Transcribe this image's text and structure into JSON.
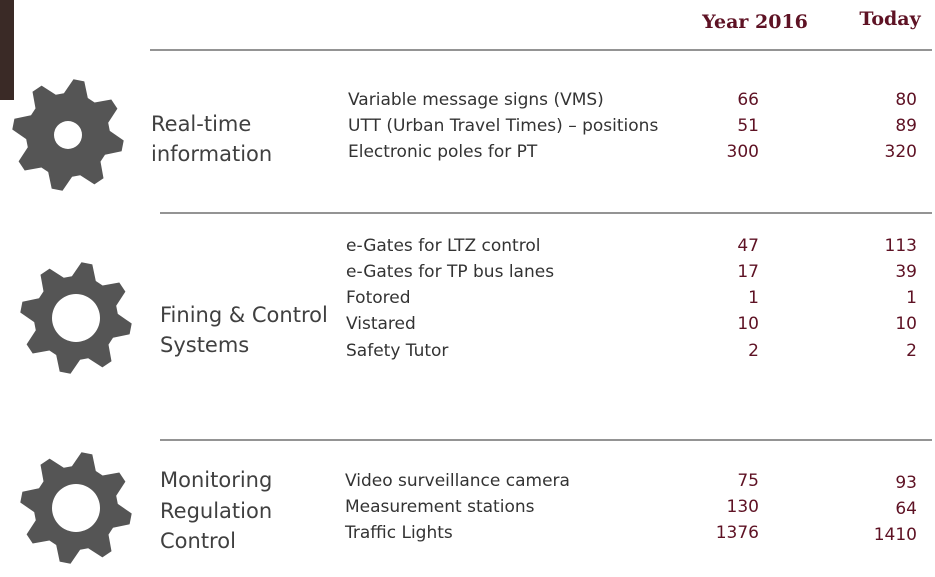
{
  "header": {
    "columns": [
      "Year 2016",
      "Today"
    ]
  },
  "sections": [
    {
      "title": [
        "Real-time",
        "information"
      ],
      "rows": [
        {
          "label": "Variable message signs (VMS)",
          "year_2016": 66,
          "today": 80
        },
        {
          "label": "UTT (Urban Travel Times) – positions",
          "year_2016": 51,
          "today": 89
        },
        {
          "label": "Electronic poles for PT",
          "year_2016": 300,
          "today": 320
        }
      ]
    },
    {
      "title": [
        "Fining & Control",
        "Systems"
      ],
      "rows": [
        {
          "label": "e-Gates for LTZ control",
          "year_2016": 47,
          "today": 113
        },
        {
          "label": "e-Gates for TP bus lanes",
          "year_2016": 17,
          "today": 39
        },
        {
          "label": "Fotored",
          "year_2016": 1,
          "today": 1
        },
        {
          "label": "Vistared",
          "year_2016": 10,
          "today": 10
        },
        {
          "label": "Safety Tutor",
          "year_2016": 2,
          "today": 2
        }
      ]
    },
    {
      "title": [
        "Monitoring",
        "Regulation",
        "Control"
      ],
      "rows": [
        {
          "label": "Video surveillance camera",
          "year_2016": 75,
          "today": 93
        },
        {
          "label": "Measurement stations",
          "year_2016": 130,
          "today": 64
        },
        {
          "label": "Traffic Lights",
          "year_2016": 1376,
          "today": 1410
        }
      ]
    }
  ]
}
